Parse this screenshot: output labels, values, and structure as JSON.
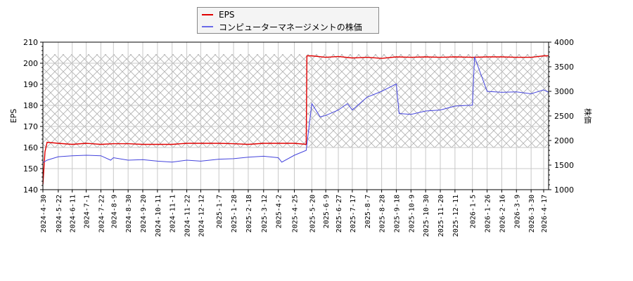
{
  "legend": {
    "items": [
      {
        "label": "EPS",
        "color": "#e00000"
      },
      {
        "label": "コンピューターマネージメントの株価",
        "color": "#4444dd"
      }
    ]
  },
  "axes": {
    "left_label": "EPS",
    "right_label": "株価"
  },
  "chart_data": {
    "type": "line",
    "title": "",
    "xlabel": "",
    "ylabel": "EPS",
    "y2label": "株価",
    "ylim": [
      140,
      210
    ],
    "y2lim": [
      1000,
      4000
    ],
    "yticks": [
      140,
      150,
      160,
      170,
      180,
      190,
      200,
      210
    ],
    "y2ticks": [
      1000,
      1500,
      2000,
      2500,
      3000,
      3500,
      4000
    ],
    "xticks": [
      "2024-4-30",
      "2024-5-22",
      "2024-6-11",
      "2024-7-1",
      "2024-7-22",
      "2024-8-9",
      "2024-8-30",
      "2024-9-20",
      "2024-10-11",
      "2024-11-1",
      "2024-11-22",
      "2024-12-12",
      "2025-1-7",
      "2025-1-28",
      "2025-2-18",
      "2025-3-12",
      "2025-4-2",
      "2025-4-25",
      "2025-5-20",
      "2025-6-9",
      "2025-6-27",
      "2025-7-17",
      "2025-8-7",
      "2025-8-28",
      "2025-9-18",
      "2025-10-9",
      "2025-10-30",
      "2025-11-20",
      "2025-12-11",
      "2026-1-5",
      "2026-1-26",
      "2026-2-16",
      "2026-3-9",
      "2026-3-30",
      "2026-4-17"
    ],
    "grid": true,
    "legend_position": "top",
    "shaded_band": {
      "from": 160,
      "to": 204.3,
      "pattern": "crosshatch"
    },
    "series": [
      {
        "name": "EPS",
        "axis": "left",
        "color": "#e00000",
        "x": [
          "2024-4-30",
          "2024-5-3",
          "2024-5-6",
          "2024-5-22",
          "2024-6-11",
          "2024-7-1",
          "2024-7-22",
          "2024-8-9",
          "2024-8-30",
          "2024-9-20",
          "2024-10-11",
          "2024-11-1",
          "2024-11-22",
          "2024-12-12",
          "2025-1-7",
          "2025-1-28",
          "2025-2-18",
          "2025-3-12",
          "2025-4-2",
          "2025-4-25",
          "2025-5-12",
          "2025-5-13",
          "2025-5-20",
          "2025-6-9",
          "2025-6-27",
          "2025-7-17",
          "2025-8-7",
          "2025-8-28",
          "2025-9-18",
          "2025-10-9",
          "2025-10-30",
          "2025-11-20",
          "2025-12-11",
          "2026-1-5",
          "2026-1-26",
          "2026-2-16",
          "2026-3-9",
          "2026-3-30",
          "2026-4-17",
          "2026-4-24"
        ],
        "values": [
          142.5,
          158,
          162.5,
          162,
          161.5,
          162,
          161.5,
          161.8,
          161.8,
          161.5,
          161.5,
          161.5,
          162,
          162,
          162,
          161.8,
          161.5,
          162,
          162,
          162,
          161.5,
          203.5,
          203.5,
          202.8,
          203.2,
          202.5,
          202.8,
          202.3,
          203,
          202.8,
          203,
          202.8,
          203,
          202.8,
          203,
          203,
          202.8,
          202.8,
          203.5,
          203.5
        ]
      },
      {
        "name": "コンピューターマネージメントの株価",
        "axis": "right",
        "color": "#4444dd",
        "x": [
          "2024-4-30",
          "2024-5-6",
          "2024-5-22",
          "2024-6-11",
          "2024-7-1",
          "2024-7-22",
          "2024-8-5",
          "2024-8-9",
          "2024-8-30",
          "2024-9-20",
          "2024-10-11",
          "2024-11-1",
          "2024-11-22",
          "2024-12-12",
          "2025-1-7",
          "2025-1-28",
          "2025-2-18",
          "2025-3-12",
          "2025-4-2",
          "2025-4-7",
          "2025-4-25",
          "2025-5-12",
          "2025-5-20",
          "2025-6-1",
          "2025-6-9",
          "2025-6-27",
          "2025-7-10",
          "2025-7-17",
          "2025-8-7",
          "2025-8-28",
          "2025-9-18",
          "2025-9-22",
          "2025-10-9",
          "2025-10-30",
          "2025-11-20",
          "2025-12-11",
          "2026-1-5",
          "2026-1-8",
          "2026-1-26",
          "2026-2-16",
          "2026-3-9",
          "2026-3-30",
          "2026-4-17",
          "2026-4-24"
        ],
        "values": [
          1550,
          1600,
          1670,
          1690,
          1700,
          1690,
          1600,
          1650,
          1600,
          1610,
          1580,
          1560,
          1600,
          1580,
          1620,
          1630,
          1660,
          1680,
          1650,
          1560,
          1700,
          1800,
          2750,
          2480,
          2510,
          2620,
          2750,
          2620,
          2880,
          3000,
          3150,
          2550,
          2530,
          2600,
          2620,
          2700,
          2720,
          3700,
          3000,
          2980,
          2990,
          2950,
          3030,
          2980
        ]
      }
    ]
  }
}
